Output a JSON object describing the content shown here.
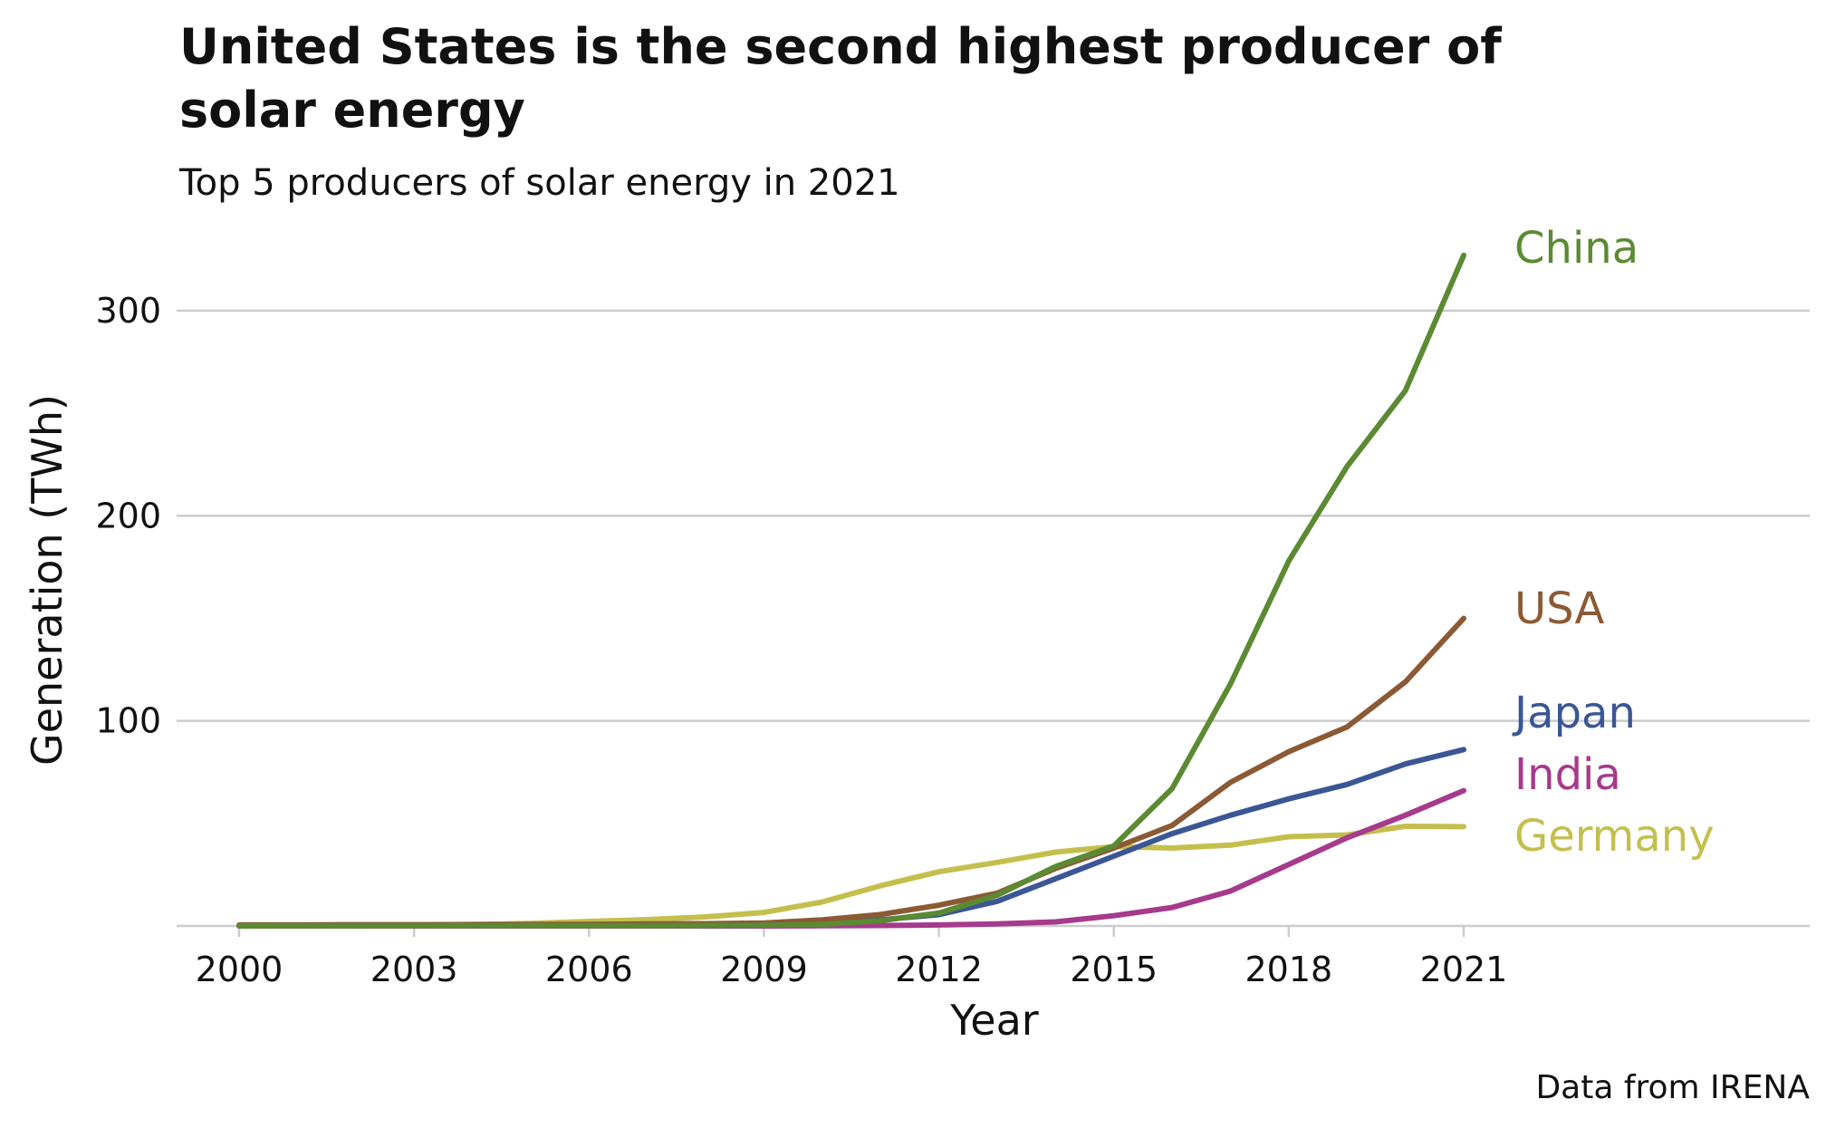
{
  "chart_data": {
    "type": "line",
    "title_lines": [
      "United States is the second highest producer of",
      "solar energy"
    ],
    "subtitle": "Top 5 producers of solar energy in 2021",
    "xlabel": "Year",
    "ylabel": "Generation (TWh)",
    "caption": "Data from IRENA",
    "xlim": [
      2000,
      2021
    ],
    "ylim": [
      0,
      330
    ],
    "x_ticks": [
      2000,
      2003,
      2006,
      2009,
      2012,
      2015,
      2018,
      2021
    ],
    "y_ticks": [
      100,
      200,
      300
    ],
    "grid": "horizontal",
    "legend": "direct labels at line ends (right)",
    "x": [
      2000,
      2001,
      2002,
      2003,
      2004,
      2005,
      2006,
      2007,
      2008,
      2009,
      2010,
      2011,
      2012,
      2013,
      2014,
      2015,
      2016,
      2017,
      2018,
      2019,
      2020,
      2021
    ],
    "series": [
      {
        "name": "China",
        "color": "#5b8a32",
        "values": [
          0.02,
          0.03,
          0.05,
          0.1,
          0.1,
          0.1,
          0.1,
          0.1,
          0.2,
          0.3,
          0.7,
          2.6,
          6.3,
          15,
          29,
          39,
          67,
          118,
          178,
          224,
          261,
          327
        ]
      },
      {
        "name": "USA",
        "color": "#8b5a34",
        "values": [
          0.5,
          0.5,
          0.6,
          0.6,
          0.7,
          0.7,
          0.8,
          1.0,
          1.1,
          1.4,
          3.0,
          5.6,
          10.1,
          16,
          28,
          38,
          49,
          70,
          85,
          97,
          119,
          150
        ]
      },
      {
        "name": "Japan",
        "color": "#3b5694",
        "values": [
          0.2,
          0.2,
          0.2,
          0.3,
          0.4,
          0.5,
          0.6,
          0.6,
          0.7,
          0.8,
          1.5,
          3.0,
          5.5,
          12,
          23,
          34,
          45,
          54,
          62,
          69,
          79,
          86
        ]
      },
      {
        "name": "India",
        "color": "#a63a8c",
        "values": [
          0.0,
          0.0,
          0.0,
          0.0,
          0.0,
          0.0,
          0.0,
          0.0,
          0.0,
          0.0,
          0.1,
          0.2,
          0.5,
          1.0,
          2.0,
          5.0,
          9.0,
          17,
          30,
          43,
          54,
          66
        ]
      },
      {
        "name": "Germany",
        "color": "#c4bf4d",
        "values": [
          0.1,
          0.2,
          0.3,
          0.4,
          0.6,
          1.3,
          2.2,
          3.1,
          4.4,
          6.6,
          11.7,
          19.6,
          26.4,
          31,
          36,
          38.7,
          38,
          39.4,
          43.5,
          44.4,
          48.6,
          48.4
        ]
      }
    ]
  }
}
